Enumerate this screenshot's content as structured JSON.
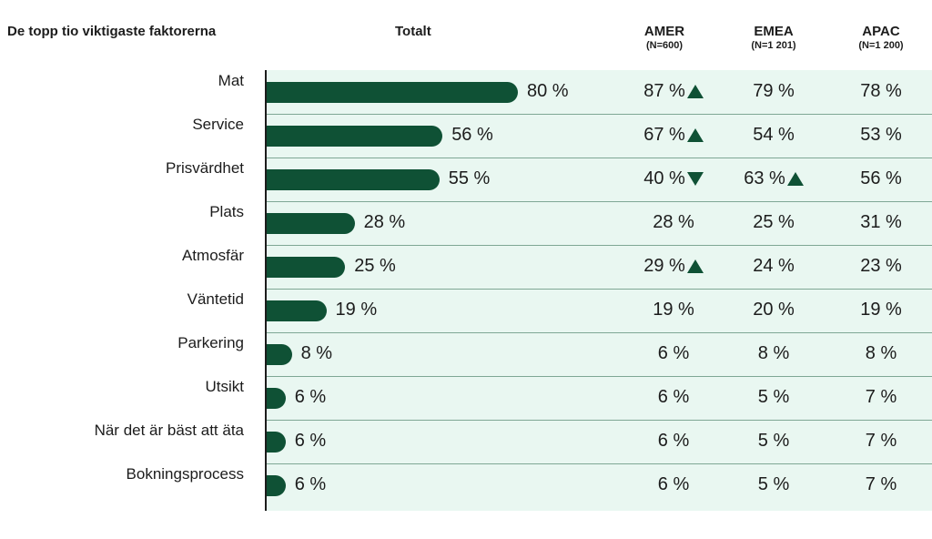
{
  "chart_data": {
    "type": "bar",
    "title": "",
    "header_factor": "De topp tio viktigaste faktorerna",
    "header_total": "Totalt",
    "regions": [
      {
        "name": "AMER",
        "n": "(N=600)"
      },
      {
        "name": "EMEA",
        "n": "(N=1 201)"
      },
      {
        "name": "APAC",
        "n": "(N=1 200)"
      }
    ],
    "categories": [
      "Mat",
      "Service",
      "Prisvärdhet",
      "Plats",
      "Atmosfär",
      "Väntetid",
      "Parkering",
      "Utsikt",
      "När det är bäst att äta",
      "Bokningsprocess"
    ],
    "series": [
      {
        "name": "Totalt",
        "values": [
          80,
          56,
          55,
          28,
          25,
          19,
          8,
          6,
          6,
          6
        ]
      },
      {
        "name": "AMER",
        "values": [
          87,
          67,
          40,
          28,
          29,
          19,
          6,
          6,
          6,
          6
        ]
      },
      {
        "name": "EMEA",
        "values": [
          79,
          54,
          63,
          25,
          24,
          20,
          8,
          5,
          5,
          5
        ]
      },
      {
        "name": "APAC",
        "values": [
          78,
          53,
          56,
          31,
          23,
          19,
          8,
          7,
          7,
          7
        ]
      }
    ],
    "markers": {
      "AMER": [
        "up",
        "up",
        "down",
        "",
        "up",
        "",
        "",
        "",
        "",
        ""
      ],
      "EMEA": [
        "",
        "",
        "up",
        "",
        "",
        "",
        "",
        "",
        "",
        ""
      ],
      "APAC": [
        "",
        "",
        "",
        "",
        "",
        "",
        "",
        "",
        "",
        ""
      ]
    },
    "value_suffix": " %",
    "xlim": [
      0,
      100
    ],
    "colors": {
      "bar": "#0f5135",
      "panel": "#e9f7f1",
      "marker": "#0f5135"
    }
  }
}
